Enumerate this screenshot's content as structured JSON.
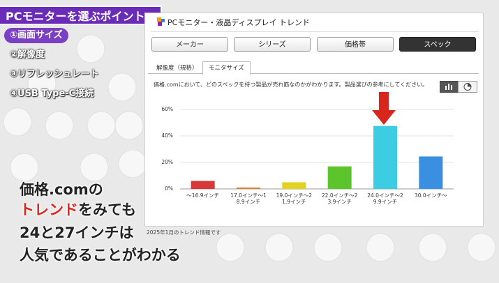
{
  "banner_title": "PCモニターを選ぶポイント",
  "points": [
    "①画面サイズ",
    "②解像度",
    "③リフレッシュレート",
    "④USB Type-C接続"
  ],
  "active_point": 0,
  "caption": {
    "line1": "価格.comの",
    "line2_highlight": "トレンド",
    "line2_rest": "をみても",
    "line3": "24と27インチは",
    "line4": "人気であることがわかる"
  },
  "panel": {
    "title": "PCモニター・液晶ディスプレイ トレンド",
    "tabs": [
      "メーカー",
      "シリーズ",
      "価格帯",
      "スペック"
    ],
    "active_tab": 3,
    "subtabs": [
      "解像度（規格）",
      "モニタサイズ"
    ],
    "active_subtab": 1,
    "description": "価格.comにおいて、どのスペックを持つ製品が売れ筋なのかがわかります。製品選びの参考にしてください。",
    "footnote": "2025年1月のトレンド情報です"
  },
  "chart": {
    "type": "bar",
    "categories": [
      "～16.9インチ",
      "17.0インチ～18.9インチ",
      "19.0インチ～21.9インチ",
      "22.0インチ～23.9インチ",
      "24.0インチ～29.9インチ",
      "30.0インチ～"
    ],
    "values": [
      6,
      1,
      5,
      17,
      47.5,
      24.5
    ],
    "colors": [
      "#d93838",
      "#e07b2a",
      "#e3d21d",
      "#5cc52c",
      "#3ccde2",
      "#3a8fe0"
    ],
    "ylim": [
      0,
      60
    ],
    "yticks": [
      {
        "value": 0,
        "label": "0%"
      },
      {
        "value": 20,
        "label": "20%"
      },
      {
        "value": 40,
        "label": "40%"
      },
      {
        "value": 60,
        "label": "60%"
      }
    ],
    "grid": true
  }
}
